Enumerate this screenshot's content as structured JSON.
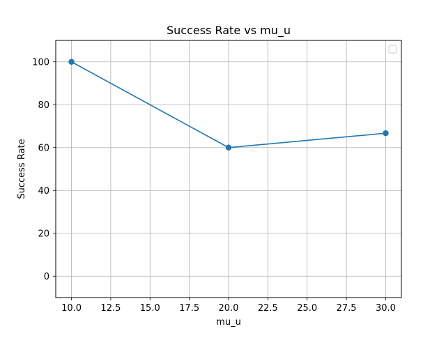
{
  "chart_data": {
    "type": "line",
    "title": "Success Rate vs mu_u",
    "xlabel": "mu_u",
    "ylabel": "Success Rate",
    "xlim": [
      9.0,
      31.0
    ],
    "ylim": [
      -10,
      110
    ],
    "xticks": [
      10.0,
      12.5,
      15.0,
      17.5,
      20.0,
      22.5,
      25.0,
      27.5,
      30.0
    ],
    "xtick_labels": [
      "10.0",
      "12.5",
      "15.0",
      "17.5",
      "20.0",
      "22.5",
      "25.0",
      "27.5",
      "30.0"
    ],
    "yticks": [
      0,
      20,
      40,
      60,
      80,
      100
    ],
    "ytick_labels": [
      "0",
      "20",
      "40",
      "60",
      "80",
      "100"
    ],
    "grid": true,
    "legend": {
      "placement": "top-right",
      "entries": []
    },
    "series": [
      {
        "x": [
          10,
          20,
          30
        ],
        "y": [
          100,
          60,
          66.7
        ],
        "color": "#1f77b4",
        "marker": "circle"
      }
    ]
  }
}
